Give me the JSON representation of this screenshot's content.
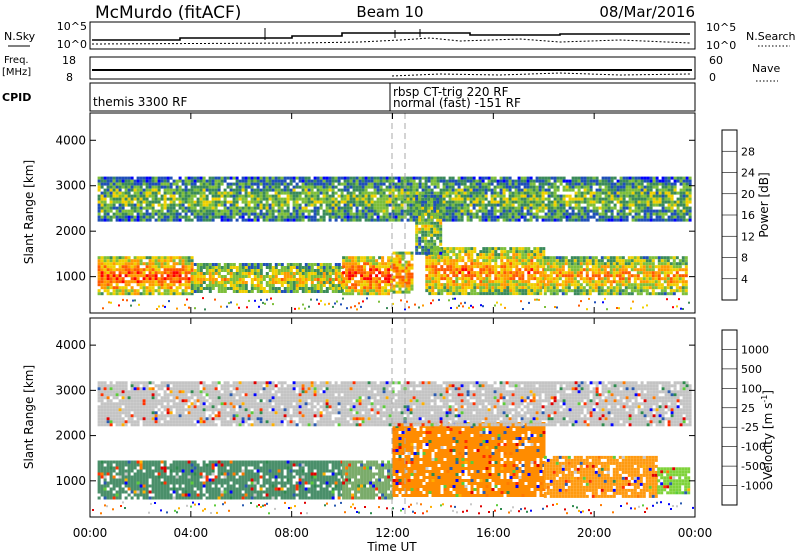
{
  "header": {
    "station": "McMurdo (fitACF)",
    "beam": "Beam 10",
    "date": "08/Mar/2016"
  },
  "top_panels": {
    "nsky_label": "N.Sky",
    "nsearch_label": "N.Search",
    "nsky_ticks_left": [
      "10^5",
      "10^0"
    ],
    "nsky_ticks_right": [
      "10^5",
      "10^0"
    ],
    "freq_label_1": "Freq.",
    "freq_label_2": "[MHz]",
    "freq_ticks": [
      "18",
      "8"
    ],
    "nave_label": "Nave",
    "nave_ticks": [
      "60",
      "0"
    ],
    "cpid_label": "CPID",
    "cpid_entries": [
      "themis 3300 RF",
      "rbsp CT-trig 220 RF",
      "normal (fast) -151 RF"
    ]
  },
  "chart_data": [
    {
      "type": "heatmap",
      "name": "power",
      "ylabel": "Slant Range [km]",
      "y_ticks": [
        "1000",
        "2000",
        "3000",
        "4000"
      ],
      "ylim": [
        200,
        4600
      ],
      "xlim": [
        0,
        24
      ],
      "colorbar": {
        "label": "Power [dB]",
        "ticks": [
          "4",
          "8",
          "12",
          "16",
          "20",
          "24",
          "28"
        ],
        "colors": [
          "#0000ff",
          "#1f4fb8",
          "#3a8a5a",
          "#7dbf3a",
          "#f0d000",
          "#ff9a00",
          "#ff5a00",
          "#ff0000"
        ]
      },
      "bands": [
        {
          "from": 0.3,
          "to": 4.0,
          "range": [
            650,
            1450
          ],
          "level": 0.85
        },
        {
          "from": 4.0,
          "to": 10.0,
          "range": [
            650,
            1300
          ],
          "level": 0.6
        },
        {
          "from": 10.0,
          "to": 12.0,
          "range": [
            650,
            1450
          ],
          "level": 0.9
        },
        {
          "from": 12.0,
          "to": 12.8,
          "range": [
            650,
            1550
          ],
          "level": 0.8
        },
        {
          "from": 13.3,
          "to": 18.0,
          "range": [
            650,
            1650
          ],
          "level": 0.75
        },
        {
          "from": 18.0,
          "to": 23.6,
          "range": [
            650,
            1450
          ],
          "level": 0.7
        },
        {
          "from": 0.3,
          "to": 23.8,
          "range": [
            2250,
            3200
          ],
          "level": 0.45
        },
        {
          "from": 12.9,
          "to": 13.9,
          "range": [
            1500,
            2800
          ],
          "level": 0.5
        }
      ]
    },
    {
      "type": "heatmap",
      "name": "velocity",
      "ylabel": "Slant Range [km]",
      "xlabel": "Time UT",
      "x_ticks": [
        "00:00",
        "04:00",
        "08:00",
        "12:00",
        "16:00",
        "20:00",
        "00:00"
      ],
      "y_ticks": [
        "1000",
        "2000",
        "3000",
        "4000"
      ],
      "ylim": [
        200,
        4600
      ],
      "xlim": [
        0,
        24
      ],
      "colorbar": {
        "label": "Velocity [m s",
        "label_sup": "-1",
        "label_end": "]",
        "ticks": [
          "1000",
          "500",
          "100",
          "25",
          "-25",
          "-100",
          "-500",
          "-1000"
        ],
        "colors": [
          "#0000ff",
          "#2a5ab0",
          "#2e8a4e",
          "#5ccc3a",
          "#c8c8c8",
          "#ffb000",
          "#ff7a00",
          "#ff3000",
          "#e00000"
        ]
      },
      "bands": [
        {
          "from": 0.3,
          "to": 10.0,
          "range": [
            650,
            1450
          ],
          "color": "#4a8f6a"
        },
        {
          "from": 10.0,
          "to": 12.0,
          "range": [
            650,
            1450
          ],
          "color": "#7aab6a"
        },
        {
          "from": 12.0,
          "to": 18.0,
          "range": [
            650,
            2300
          ],
          "color": "#ff8c00"
        },
        {
          "from": 18.0,
          "to": 22.5,
          "range": [
            650,
            1550
          ],
          "color": "#ff9a10"
        },
        {
          "from": 22.5,
          "to": 23.8,
          "range": [
            750,
            1300
          ],
          "color": "#7fd23a"
        },
        {
          "from": 0.3,
          "to": 23.8,
          "range": [
            2250,
            3200
          ],
          "color": "#c4c4c4"
        }
      ]
    }
  ]
}
